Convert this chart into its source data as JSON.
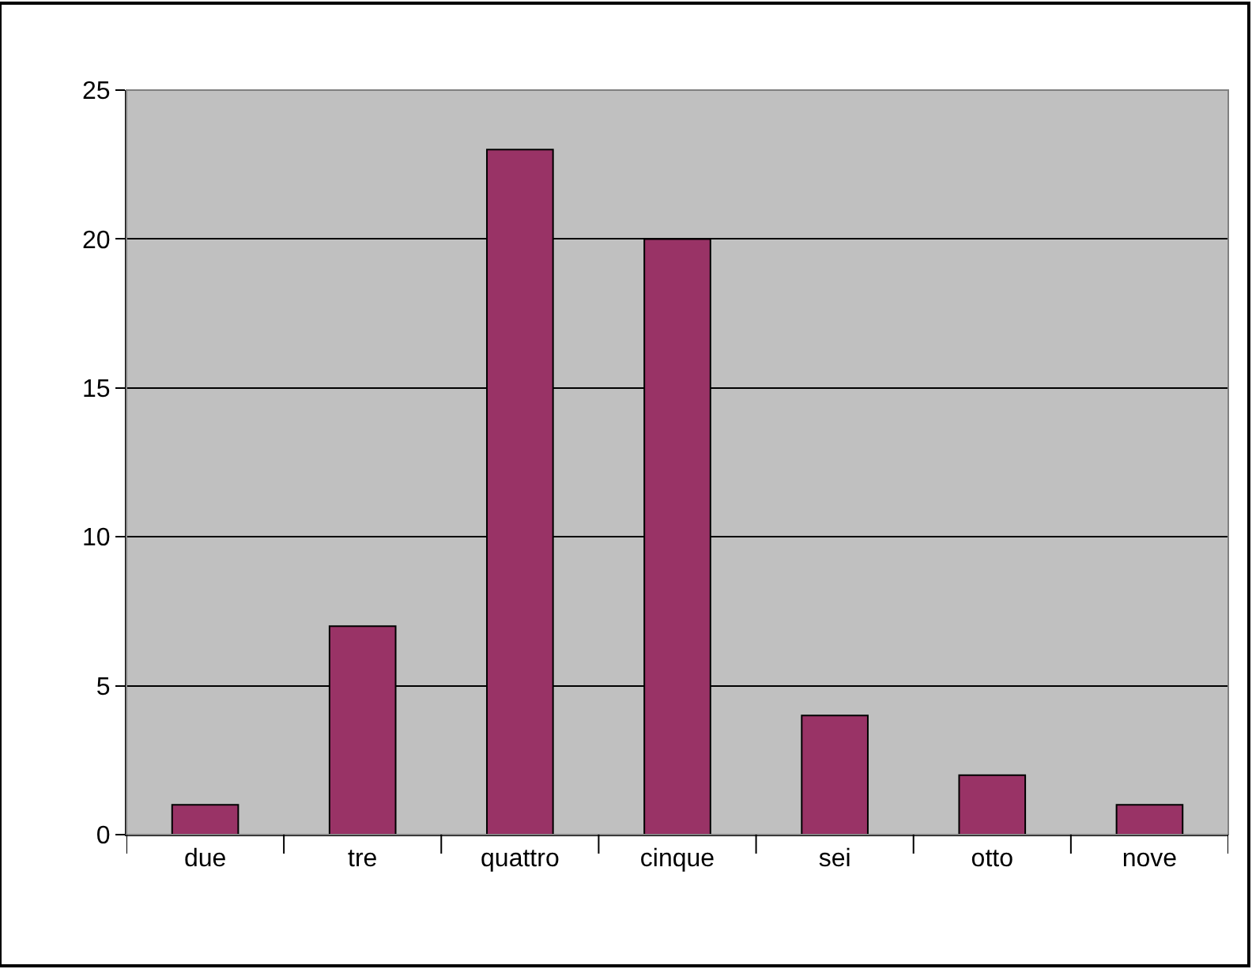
{
  "chart_data": {
    "type": "bar",
    "categories": [
      "due",
      "tre",
      "quattro",
      "cinque",
      "sei",
      "otto",
      "nove"
    ],
    "values": [
      1,
      7,
      23,
      20,
      4,
      2,
      1
    ],
    "color": "#993366",
    "ylim": [
      0,
      25
    ],
    "yticks": [
      0,
      5,
      10,
      15,
      20,
      25
    ],
    "grid": "y",
    "legend": false
  }
}
